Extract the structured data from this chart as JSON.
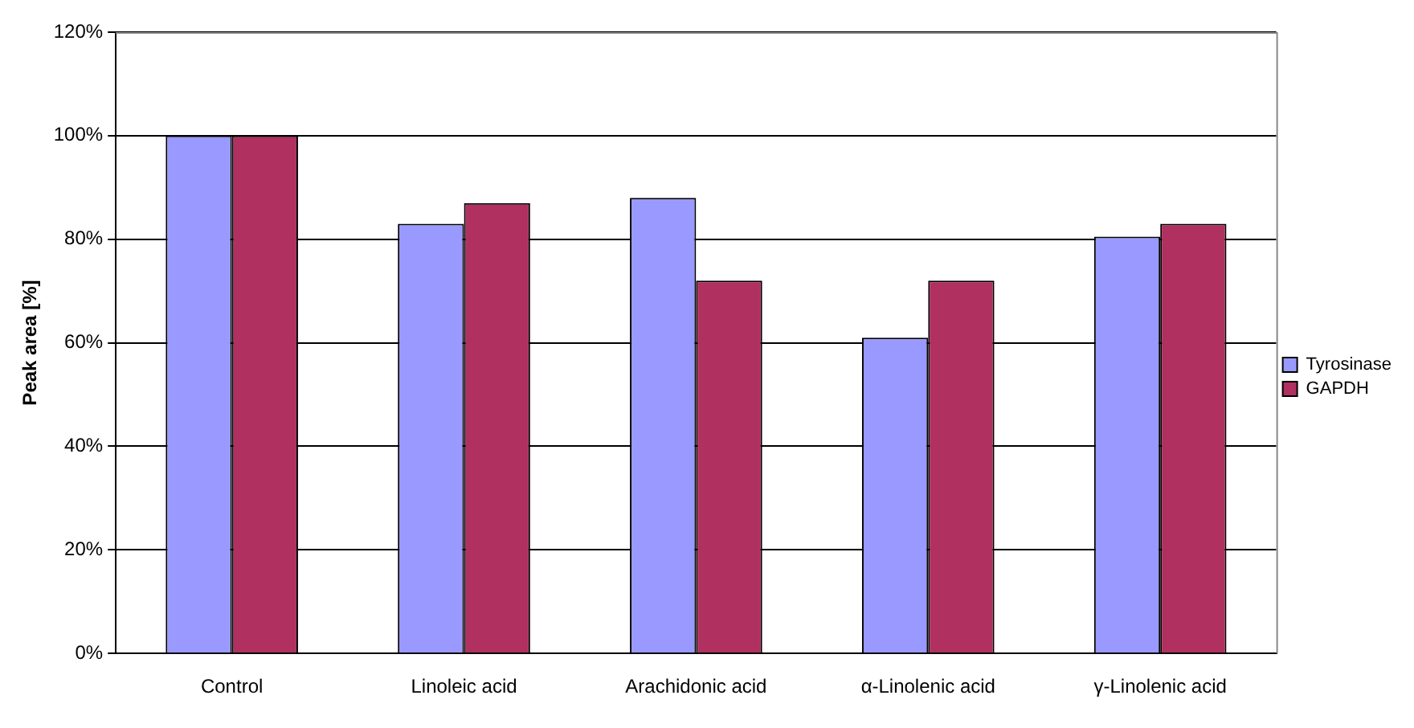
{
  "chart_data": {
    "type": "bar",
    "ylabel": "Peak area [%]",
    "categories": [
      "Control",
      "Linoleic acid",
      "Arachidonic acid",
      "α-Linolenic acid",
      "γ-Linolenic acid"
    ],
    "series": [
      {
        "name": "Tyrosinase",
        "color": "#9999ff",
        "values": [
          100,
          83,
          88,
          61,
          80.5
        ]
      },
      {
        "name": "GAPDH",
        "color": "#b03060",
        "values": [
          100,
          87,
          72,
          72,
          83
        ]
      }
    ],
    "ylim": [
      0,
      120
    ],
    "yticks": [
      {
        "value": 0,
        "label": "0%"
      },
      {
        "value": 20,
        "label": "20%"
      },
      {
        "value": 40,
        "label": "40%"
      },
      {
        "value": 60,
        "label": "60%"
      },
      {
        "value": 80,
        "label": "80%"
      },
      {
        "value": 100,
        "label": "100%"
      },
      {
        "value": 120,
        "label": "120%"
      }
    ],
    "grid": "y",
    "legend": "right"
  }
}
